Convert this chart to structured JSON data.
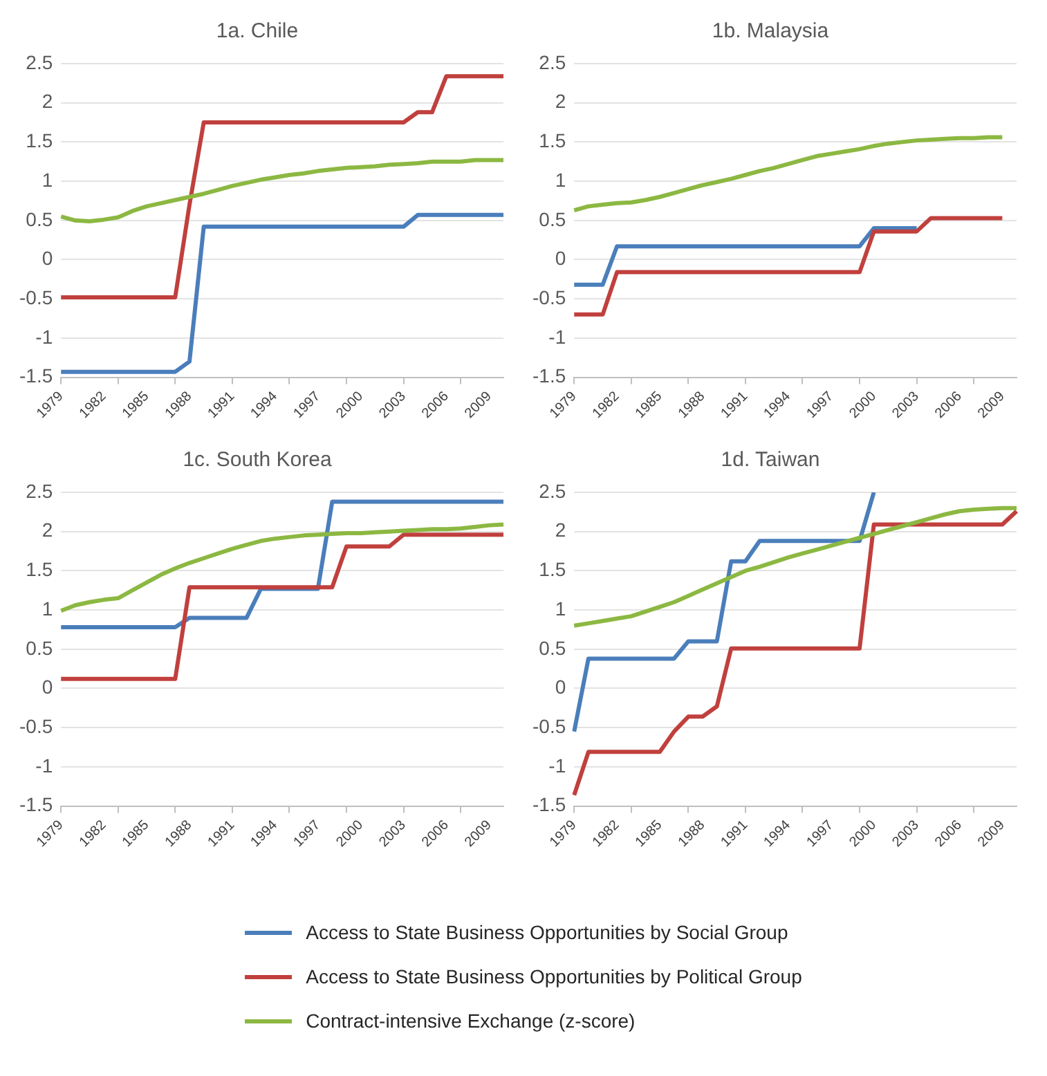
{
  "chart_data": [
    {
      "type": "line",
      "title": "1a. Chile",
      "legend": "bottom",
      "categories": [
        "1979",
        null,
        null,
        "1982",
        null,
        null,
        "1985",
        null,
        null,
        "1988",
        null,
        null,
        "1991",
        null,
        null,
        "1994",
        null,
        null,
        "1997",
        null,
        null,
        "2000",
        null,
        null,
        "2003",
        null,
        null,
        "2006",
        null,
        null,
        "2009",
        null
      ],
      "ylim": [
        -1.5,
        2.5
      ],
      "yticks": [
        -1.5,
        -1,
        -0.5,
        0,
        0.5,
        1,
        1.5,
        2,
        2.5
      ],
      "grid": "y",
      "series": [
        {
          "name": "Access to State Business Opportunities by Social Group",
          "color": "#4a7ebb",
          "values": [
            -1.43,
            -1.43,
            -1.43,
            -1.43,
            -1.43,
            -1.43,
            -1.43,
            -1.43,
            -1.43,
            -1.3,
            0.42,
            0.42,
            0.42,
            0.42,
            0.42,
            0.42,
            0.42,
            0.42,
            0.42,
            0.42,
            0.42,
            0.42,
            0.42,
            0.42,
            0.42,
            0.57,
            0.57,
            0.57,
            0.57,
            0.57,
            0.57,
            0.57
          ]
        },
        {
          "name": "Access to State Business Opportunities by Political Group",
          "color": "#c0403d",
          "values": [
            -0.48,
            -0.48,
            -0.48,
            -0.48,
            -0.48,
            -0.48,
            -0.48,
            -0.48,
            -0.48,
            0.7,
            1.75,
            1.75,
            1.75,
            1.75,
            1.75,
            1.75,
            1.75,
            1.75,
            1.75,
            1.75,
            1.75,
            1.75,
            1.75,
            1.75,
            1.75,
            1.88,
            1.88,
            2.34,
            2.34,
            2.34,
            2.34,
            2.34
          ]
        },
        {
          "name": "Contract-intensive Exchange (z-score)",
          "color": "#8cb842",
          "values": [
            0.55,
            0.5,
            0.49,
            0.51,
            0.54,
            0.62,
            0.68,
            0.72,
            0.76,
            0.8,
            0.84,
            0.89,
            0.94,
            0.98,
            1.02,
            1.05,
            1.08,
            1.1,
            1.13,
            1.15,
            1.17,
            1.18,
            1.19,
            1.21,
            1.22,
            1.23,
            1.25,
            1.25,
            1.25,
            1.27,
            1.27,
            1.27
          ]
        }
      ]
    },
    {
      "type": "line",
      "title": "1b. Malaysia",
      "categories": [
        "1979",
        null,
        null,
        "1982",
        null,
        null,
        "1985",
        null,
        null,
        "1988",
        null,
        null,
        "1991",
        null,
        null,
        "1994",
        null,
        null,
        "1997",
        null,
        null,
        "2000",
        null,
        null,
        "2003",
        null,
        null,
        "2006",
        null,
        null,
        "2009",
        null
      ],
      "ylim": [
        -1.5,
        2.5
      ],
      "yticks": [
        -1.5,
        -1,
        -0.5,
        0,
        0.5,
        1,
        1.5,
        2,
        2.5
      ],
      "grid": "y",
      "series": [
        {
          "color": "#4a7ebb",
          "values": [
            -0.32,
            -0.32,
            -0.32,
            0.17,
            0.17,
            0.17,
            0.17,
            0.17,
            0.17,
            0.17,
            0.17,
            0.17,
            0.17,
            0.17,
            0.17,
            0.17,
            0.17,
            0.17,
            0.17,
            0.17,
            0.17,
            0.4,
            0.4,
            0.4,
            0.4,
            null,
            null,
            null,
            null,
            null,
            null,
            null
          ]
        },
        {
          "color": "#c0403d",
          "values": [
            -0.7,
            -0.7,
            -0.7,
            -0.16,
            -0.16,
            -0.16,
            -0.16,
            -0.16,
            -0.16,
            -0.16,
            -0.16,
            -0.16,
            -0.16,
            -0.16,
            -0.16,
            -0.16,
            -0.16,
            -0.16,
            -0.16,
            -0.16,
            -0.16,
            0.36,
            0.36,
            0.36,
            0.36,
            0.53,
            0.53,
            0.53,
            0.53,
            0.53,
            0.53,
            null
          ]
        },
        {
          "color": "#8cb842",
          "values": [
            0.63,
            0.68,
            0.7,
            0.72,
            0.73,
            0.76,
            0.8,
            0.85,
            0.9,
            0.95,
            0.99,
            1.03,
            1.08,
            1.13,
            1.17,
            1.22,
            1.27,
            1.32,
            1.35,
            1.38,
            1.41,
            1.45,
            1.48,
            1.5,
            1.52,
            1.53,
            1.54,
            1.55,
            1.55,
            1.56,
            1.56,
            null
          ]
        }
      ]
    },
    {
      "type": "line",
      "title": "1c. South Korea",
      "categories": [
        "1979",
        null,
        null,
        "1982",
        null,
        null,
        "1985",
        null,
        null,
        "1988",
        null,
        null,
        "1991",
        null,
        null,
        "1994",
        null,
        null,
        "1997",
        null,
        null,
        "2000",
        null,
        null,
        "2003",
        null,
        null,
        "2006",
        null,
        null,
        "2009",
        null
      ],
      "ylim": [
        -1.5,
        2.5
      ],
      "yticks": [
        -1.5,
        -1,
        -0.5,
        0,
        0.5,
        1,
        1.5,
        2,
        2.5
      ],
      "grid": "y",
      "series": [
        {
          "color": "#4a7ebb",
          "values": [
            0.78,
            0.78,
            0.78,
            0.78,
            0.78,
            0.78,
            0.78,
            0.78,
            0.78,
            0.9,
            0.9,
            0.9,
            0.9,
            0.9,
            1.27,
            1.27,
            1.27,
            1.27,
            1.27,
            2.38,
            2.38,
            2.38,
            2.38,
            2.38,
            2.38,
            2.38,
            2.38,
            2.38,
            2.38,
            2.38,
            2.38,
            2.38
          ]
        },
        {
          "color": "#c0403d",
          "values": [
            0.12,
            0.12,
            0.12,
            0.12,
            0.12,
            0.12,
            0.12,
            0.12,
            0.12,
            1.29,
            1.29,
            1.29,
            1.29,
            1.29,
            1.29,
            1.29,
            1.29,
            1.29,
            1.29,
            1.29,
            1.81,
            1.81,
            1.81,
            1.81,
            1.96,
            1.96,
            1.96,
            1.96,
            1.96,
            1.96,
            1.96,
            1.96
          ]
        },
        {
          "color": "#8cb842",
          "values": [
            0.99,
            1.06,
            1.1,
            1.13,
            1.15,
            1.25,
            1.35,
            1.45,
            1.53,
            1.6,
            1.66,
            1.72,
            1.78,
            1.83,
            1.88,
            1.91,
            1.93,
            1.95,
            1.96,
            1.97,
            1.98,
            1.98,
            1.99,
            2,
            2.01,
            2.02,
            2.03,
            2.03,
            2.04,
            2.06,
            2.08,
            2.09
          ]
        }
      ]
    },
    {
      "type": "line",
      "title": "1d. Taiwan",
      "categories": [
        "1979",
        null,
        null,
        "1982",
        null,
        null,
        "1985",
        null,
        null,
        "1988",
        null,
        null,
        "1991",
        null,
        null,
        "1994",
        null,
        null,
        "1997",
        null,
        null,
        "2000",
        null,
        null,
        "2003",
        null,
        null,
        "2006",
        null,
        null,
        "2009",
        null
      ],
      "ylim": [
        -1.5,
        2.5
      ],
      "yticks": [
        -1.5,
        -1,
        -0.5,
        0,
        0.5,
        1,
        1.5,
        2,
        2.5
      ],
      "grid": "y",
      "series": [
        {
          "color": "#4a7ebb",
          "values": [
            -0.55,
            0.38,
            0.38,
            0.38,
            0.38,
            0.38,
            0.38,
            0.38,
            0.6,
            0.6,
            0.6,
            1.62,
            1.62,
            1.88,
            1.88,
            1.88,
            1.88,
            1.88,
            1.88,
            1.88,
            1.88,
            2.5,
            null,
            null,
            null,
            null,
            null,
            null,
            null,
            null,
            null,
            null
          ]
        },
        {
          "color": "#c0403d",
          "values": [
            -1.36,
            -0.81,
            -0.81,
            -0.81,
            -0.81,
            -0.81,
            -0.81,
            -0.55,
            -0.36,
            -0.36,
            -0.23,
            0.51,
            0.51,
            0.51,
            0.51,
            0.51,
            0.51,
            0.51,
            0.51,
            0.51,
            0.51,
            2.09,
            2.09,
            2.09,
            2.09,
            2.09,
            2.09,
            2.09,
            2.09,
            2.09,
            2.09,
            2.26
          ]
        },
        {
          "color": "#8cb842",
          "values": [
            0.8,
            0.83,
            0.86,
            0.89,
            0.92,
            0.98,
            1.04,
            1.1,
            1.18,
            1.26,
            1.34,
            1.42,
            1.5,
            1.55,
            1.61,
            1.67,
            1.72,
            1.77,
            1.82,
            1.87,
            1.92,
            1.97,
            2.02,
            2.07,
            2.12,
            2.17,
            2.22,
            2.26,
            2.28,
            2.29,
            2.3,
            2.3
          ]
        }
      ]
    }
  ]
}
